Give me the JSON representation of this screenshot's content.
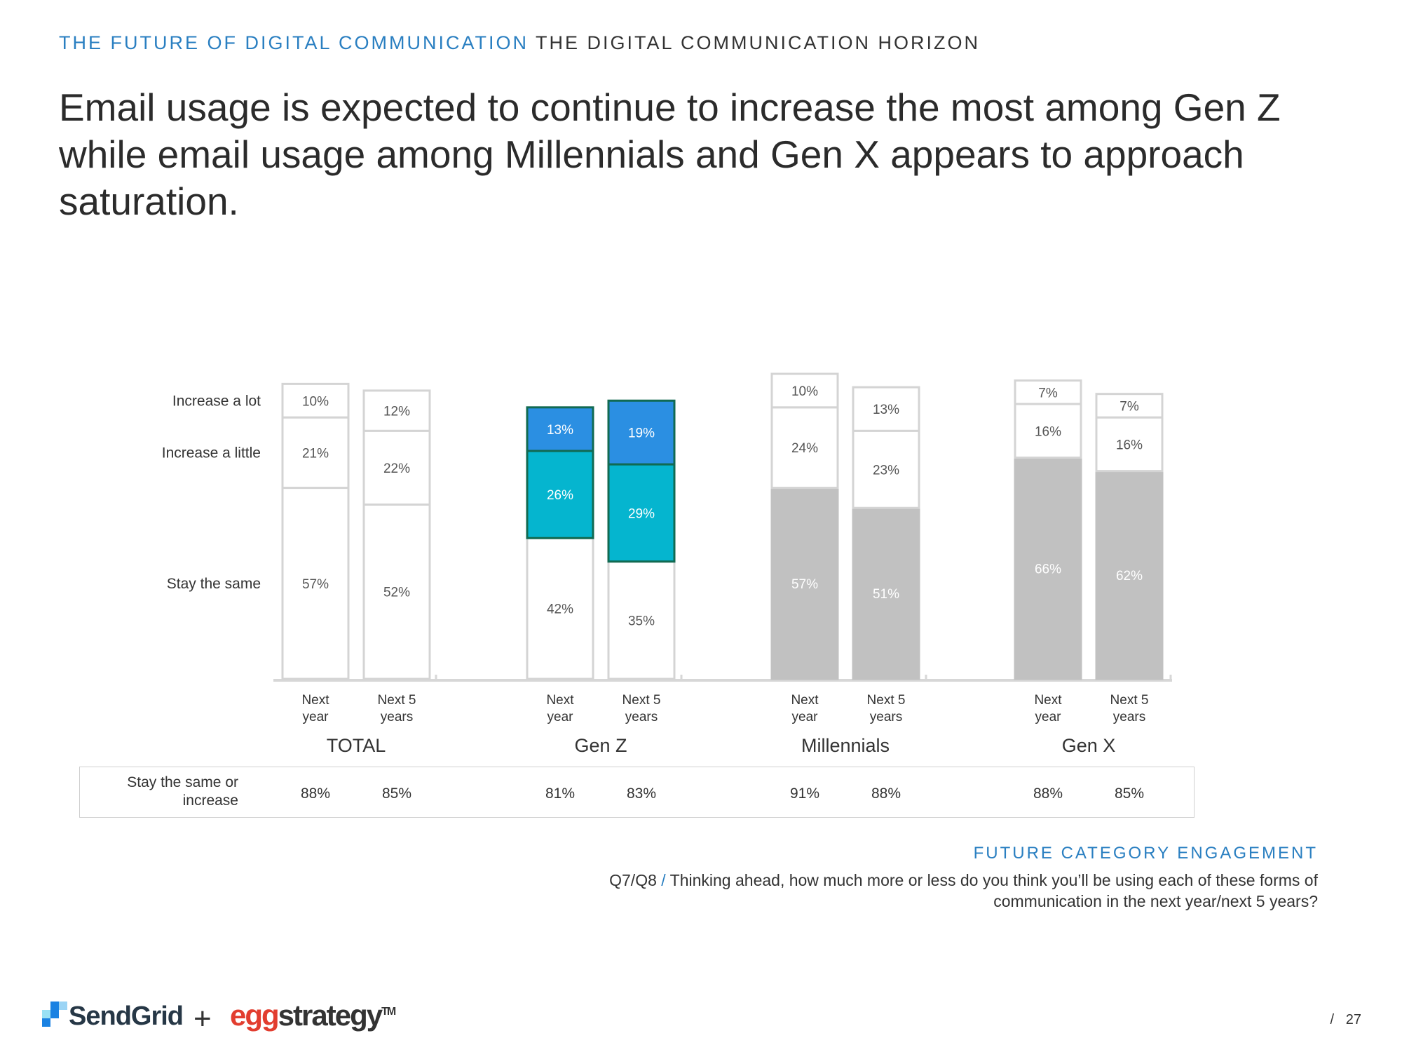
{
  "header": {
    "section": "THE FUTURE OF DIGITAL COMMUNICATION",
    "subsection": "THE DIGITAL COMMUNICATION HORIZON"
  },
  "title": "Email usage is expected to continue to increase the most among Gen Z while email usage among Millennials and Gen X appears to approach saturation.",
  "chart_data": {
    "type": "bar",
    "stacked": true,
    "title": "",
    "row_labels": [
      "Increase a lot",
      "Increase a little",
      "Stay the same"
    ],
    "groups": [
      {
        "name": "TOTAL",
        "style": "outline",
        "bars": [
          {
            "label": [
              "Next",
              "year"
            ],
            "segments": [
              57,
              21,
              10
            ]
          },
          {
            "label": [
              "Next 5",
              "years"
            ],
            "segments": [
              52,
              22,
              12
            ]
          }
        ]
      },
      {
        "name": "Gen Z",
        "style": "highlight",
        "bars": [
          {
            "label": [
              "Next",
              "year"
            ],
            "segments": [
              42,
              26,
              13
            ]
          },
          {
            "label": [
              "Next 5",
              "years"
            ],
            "segments": [
              35,
              29,
              19
            ]
          }
        ]
      },
      {
        "name": "Millennials",
        "style": "grey",
        "bars": [
          {
            "label": [
              "Next",
              "year"
            ],
            "segments": [
              57,
              24,
              10
            ]
          },
          {
            "label": [
              "Next 5",
              "years"
            ],
            "segments": [
              51,
              23,
              13
            ]
          }
        ]
      },
      {
        "name": "Gen X",
        "style": "grey",
        "bars": [
          {
            "label": [
              "Next",
              "year"
            ],
            "segments": [
              66,
              16,
              7
            ]
          },
          {
            "label": [
              "Next 5",
              "years"
            ],
            "segments": [
              62,
              16,
              7
            ]
          }
        ]
      }
    ],
    "colors": {
      "increase_a_lot_highlight": "#2b8fe2",
      "increase_a_little_highlight": "#05b5cf",
      "highlight_border": "#116a52",
      "grey_fill": "#c1c1c1",
      "outline": "#d4d4d4"
    }
  },
  "stay_row": {
    "label": "Stay the same or increase",
    "values": [
      "88%",
      "85%",
      "81%",
      "83%",
      "91%",
      "88%",
      "88%",
      "85%"
    ]
  },
  "footer": {
    "category": "FUTURE CATEGORY ENGAGEMENT",
    "question_code": "Q7/Q8",
    "question_sep": "/",
    "question_text": "Thinking ahead, how much more or less do you think you’ll be using each of these forms of communication in the next year/next 5 years?",
    "logo_sendgrid": "SendGrid",
    "plus": "+",
    "logo_egg": "egg",
    "logo_strategy": "strategy",
    "logo_tm": "TM",
    "page_sep": "/",
    "page_number": "27"
  }
}
